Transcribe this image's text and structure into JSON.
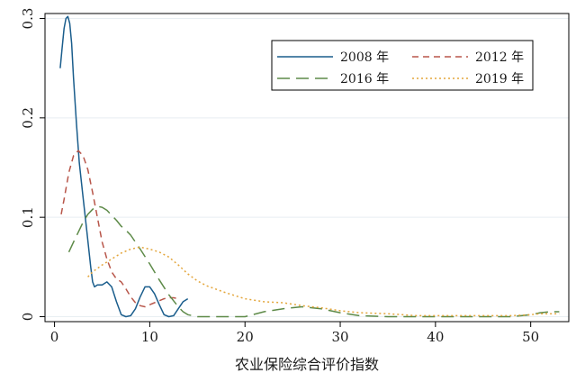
{
  "chart_data": {
    "type": "line",
    "title": "",
    "xlabel": "农业保险综合评价指数",
    "ylabel": "",
    "xlim": [
      -1,
      54
    ],
    "ylim": [
      -0.005,
      0.305
    ],
    "x_ticks": [
      0,
      10,
      20,
      30,
      40,
      50
    ],
    "x_tick_labels": [
      "0",
      "10",
      "20",
      "30",
      "40",
      "50"
    ],
    "y_ticks": [
      0,
      0.1,
      0.2,
      0.3
    ],
    "y_tick_labels": [
      "0",
      "0.1",
      "0.2",
      "0.3"
    ],
    "grid": true,
    "legend_position": "top-right",
    "series": [
      {
        "name": "2008 年",
        "color": "#1a5d8c",
        "dash": "solid",
        "x": [
          0.6,
          0.8,
          1.0,
          1.2,
          1.4,
          1.6,
          1.8,
          2.0,
          2.3,
          2.6,
          3.0,
          3.4,
          3.8,
          4.0,
          4.2,
          4.5,
          5.0,
          5.5,
          6.0,
          6.5,
          7.0,
          7.5,
          8.0,
          8.5,
          9.0,
          9.5,
          10.0,
          10.5,
          11.0,
          11.5,
          12.0,
          12.5,
          13.0,
          13.5,
          14.0
        ],
        "y": [
          0.25,
          0.27,
          0.29,
          0.3,
          0.302,
          0.295,
          0.275,
          0.24,
          0.195,
          0.155,
          0.12,
          0.085,
          0.05,
          0.035,
          0.03,
          0.032,
          0.032,
          0.035,
          0.03,
          0.015,
          0.002,
          0.0,
          0.001,
          0.008,
          0.02,
          0.03,
          0.03,
          0.023,
          0.012,
          0.002,
          0.0,
          0.001,
          0.008,
          0.015,
          0.018
        ]
      },
      {
        "name": "2012 年",
        "color": "#b8564a",
        "dash": "7,5",
        "x": [
          0.7,
          1.0,
          1.5,
          2.0,
          2.5,
          3.0,
          3.5,
          4.0,
          4.5,
          5.0,
          5.5,
          6.0,
          6.5,
          7.0,
          7.5,
          8.0,
          8.5,
          9.0,
          9.5,
          10.0,
          10.5,
          11.0,
          11.5,
          12.0,
          12.5,
          13.0
        ],
        "y": [
          0.103,
          0.118,
          0.145,
          0.162,
          0.167,
          0.162,
          0.148,
          0.125,
          0.1,
          0.075,
          0.058,
          0.045,
          0.038,
          0.035,
          0.028,
          0.02,
          0.014,
          0.011,
          0.01,
          0.012,
          0.014,
          0.016,
          0.018,
          0.019,
          0.019,
          0.018
        ]
      },
      {
        "name": "2016 年",
        "color": "#5d8a48",
        "dash": "14,7",
        "x": [
          1.5,
          2.0,
          2.5,
          3.0,
          3.5,
          4.0,
          4.5,
          5.0,
          5.5,
          6.0,
          6.5,
          7.0,
          7.5,
          8.0,
          9.0,
          10.0,
          11.0,
          12.0,
          13.0,
          13.5,
          14.0,
          15.0,
          16.0,
          18.0,
          20.0,
          22.0,
          24.0,
          26.0,
          28.0,
          30.0,
          32.0,
          35.0,
          40.0,
          45.0,
          48.0,
          50.0,
          51.0,
          52.0,
          53.0
        ],
        "y": [
          0.065,
          0.075,
          0.085,
          0.095,
          0.103,
          0.108,
          0.111,
          0.11,
          0.107,
          0.102,
          0.097,
          0.091,
          0.087,
          0.082,
          0.068,
          0.053,
          0.037,
          0.022,
          0.01,
          0.005,
          0.002,
          0.0,
          0.0,
          0.0,
          0.0,
          0.005,
          0.008,
          0.01,
          0.008,
          0.004,
          0.001,
          0.0,
          0.0,
          0.0,
          0.0,
          0.002,
          0.004,
          0.005,
          0.005
        ]
      },
      {
        "name": "2019 年",
        "color": "#e3a53a",
        "dash": "2,3",
        "x": [
          3.5,
          4.0,
          5.0,
          6.0,
          7.0,
          8.0,
          9.0,
          10.0,
          11.0,
          12.0,
          13.0,
          14.0,
          15.0,
          16.0,
          18.0,
          20.0,
          22.0,
          24.0,
          26.0,
          28.0,
          30.0,
          32.0,
          35.0,
          38.0,
          40.0,
          43.0,
          46.0,
          48.0,
          50.0,
          51.0,
          52.0,
          53.0
        ],
        "y": [
          0.04,
          0.045,
          0.052,
          0.058,
          0.064,
          0.068,
          0.07,
          0.068,
          0.065,
          0.06,
          0.052,
          0.043,
          0.036,
          0.031,
          0.024,
          0.018,
          0.015,
          0.014,
          0.011,
          0.009,
          0.006,
          0.004,
          0.003,
          0.001,
          0.001,
          0.001,
          0.001,
          0.001,
          0.002,
          0.003,
          0.003,
          0.003
        ]
      }
    ]
  }
}
